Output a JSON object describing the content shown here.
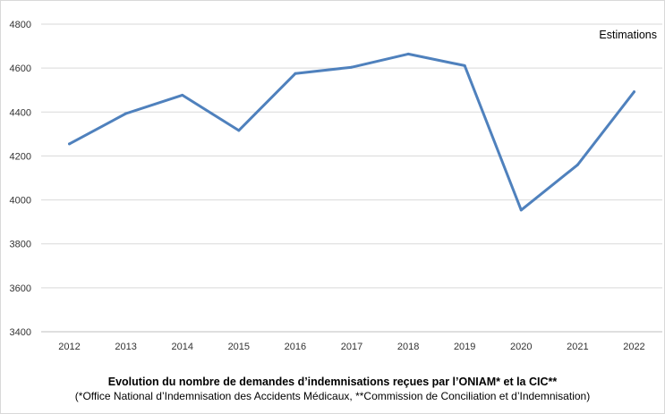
{
  "chart_data": {
    "type": "line",
    "categories": [
      "2012",
      "2013",
      "2014",
      "2015",
      "2016",
      "2017",
      "2018",
      "2019",
      "2020",
      "2021",
      "2022"
    ],
    "series": [
      {
        "values": [
          4255,
          4393,
          4477,
          4316,
          4575,
          4604,
          4664,
          4611,
          3954,
          4160,
          4492
        ],
        "color": "#4f81bd"
      }
    ],
    "ylim": [
      3400,
      4800
    ],
    "yticks": [
      "3400",
      "3600",
      "3800",
      "4000",
      "4200",
      "4400",
      "4600",
      "4800"
    ],
    "grid": true,
    "annotation": "Estimations",
    "title": "Evolution du nombre de demandes d’indemnisations reçues  par l’ONIAM* et la CIC**",
    "subtitle": "(*Office National d’Indemnisation des Accidents Médicaux, **Commission de Conciliation et d’Indemnisation)"
  }
}
